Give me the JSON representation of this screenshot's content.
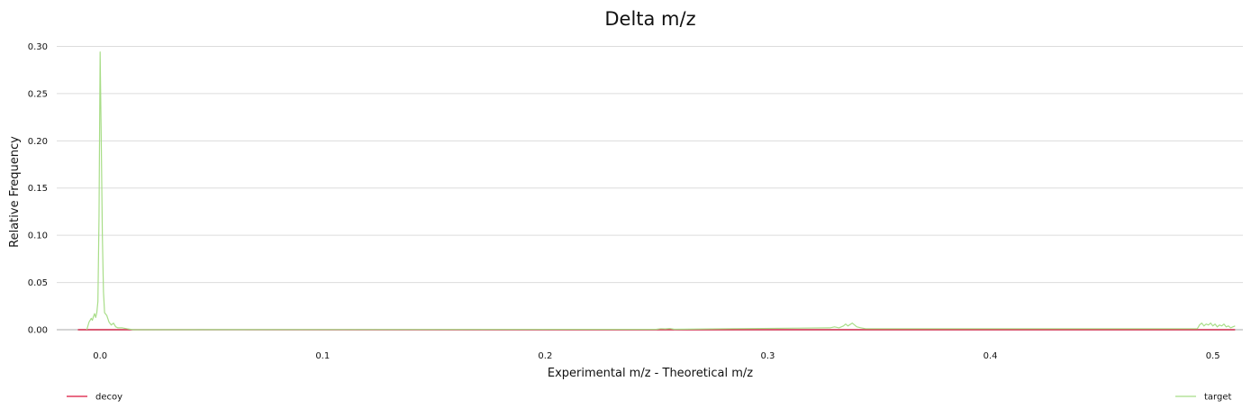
{
  "chart_data": {
    "type": "line",
    "title": "Delta m/z",
    "xlabel": "Experimental m/z - Theoretical m/z",
    "ylabel": "Relative Frequency",
    "xlim": [
      -0.0195,
      0.5135
    ],
    "ylim": [
      0,
      0.31
    ],
    "x_ticks": [
      0.0,
      0.1,
      0.2,
      0.3,
      0.4,
      0.5
    ],
    "x_tick_labels": [
      "0.0",
      "0.1",
      "0.2",
      "0.3",
      "0.4",
      "0.5"
    ],
    "y_ticks": [
      0.0,
      0.05,
      0.1,
      0.15,
      0.2,
      0.25,
      0.3
    ],
    "y_tick_labels": [
      "0.00",
      "0.05",
      "0.10",
      "0.15",
      "0.20",
      "0.25",
      "0.30"
    ],
    "grid": "horizontal",
    "legend": [
      "decoy",
      "target"
    ],
    "series": [
      {
        "name": "decoy",
        "color": "#dc143c",
        "x": [
          -0.01,
          0.51
        ],
        "y": [
          0,
          0
        ]
      },
      {
        "name": "target",
        "color": "#a8dd88",
        "x": [
          -0.006,
          -0.005,
          -0.004,
          -0.0035,
          -0.003,
          -0.0025,
          -0.002,
          -0.0015,
          -0.001,
          -0.0005,
          0.0,
          0.0005,
          0.001,
          0.0015,
          0.002,
          0.003,
          0.004,
          0.005,
          0.006,
          0.007,
          0.008,
          0.01,
          0.012,
          0.015,
          0.25,
          0.252,
          0.254,
          0.256,
          0.258,
          0.328,
          0.33,
          0.332,
          0.334,
          0.335,
          0.336,
          0.338,
          0.34,
          0.342,
          0.344,
          0.493,
          0.494,
          0.495,
          0.496,
          0.497,
          0.498,
          0.499,
          0.5,
          0.501,
          0.502,
          0.503,
          0.504,
          0.505,
          0.506,
          0.507,
          0.508,
          0.509,
          0.51
        ],
        "y": [
          0.0,
          0.008,
          0.012,
          0.01,
          0.014,
          0.017,
          0.013,
          0.018,
          0.03,
          0.12,
          0.294,
          0.2,
          0.1,
          0.04,
          0.018,
          0.015,
          0.008,
          0.005,
          0.007,
          0.003,
          0.002,
          0.002,
          0.001,
          0.0,
          0.0005,
          0.001,
          0.0008,
          0.0012,
          0.0005,
          0.002,
          0.003,
          0.002,
          0.004,
          0.006,
          0.004,
          0.007,
          0.003,
          0.002,
          0.001,
          0.001,
          0.005,
          0.007,
          0.004,
          0.006,
          0.005,
          0.007,
          0.004,
          0.006,
          0.003,
          0.005,
          0.004,
          0.006,
          0.003,
          0.004,
          0.002,
          0.003,
          0.004
        ]
      }
    ]
  }
}
